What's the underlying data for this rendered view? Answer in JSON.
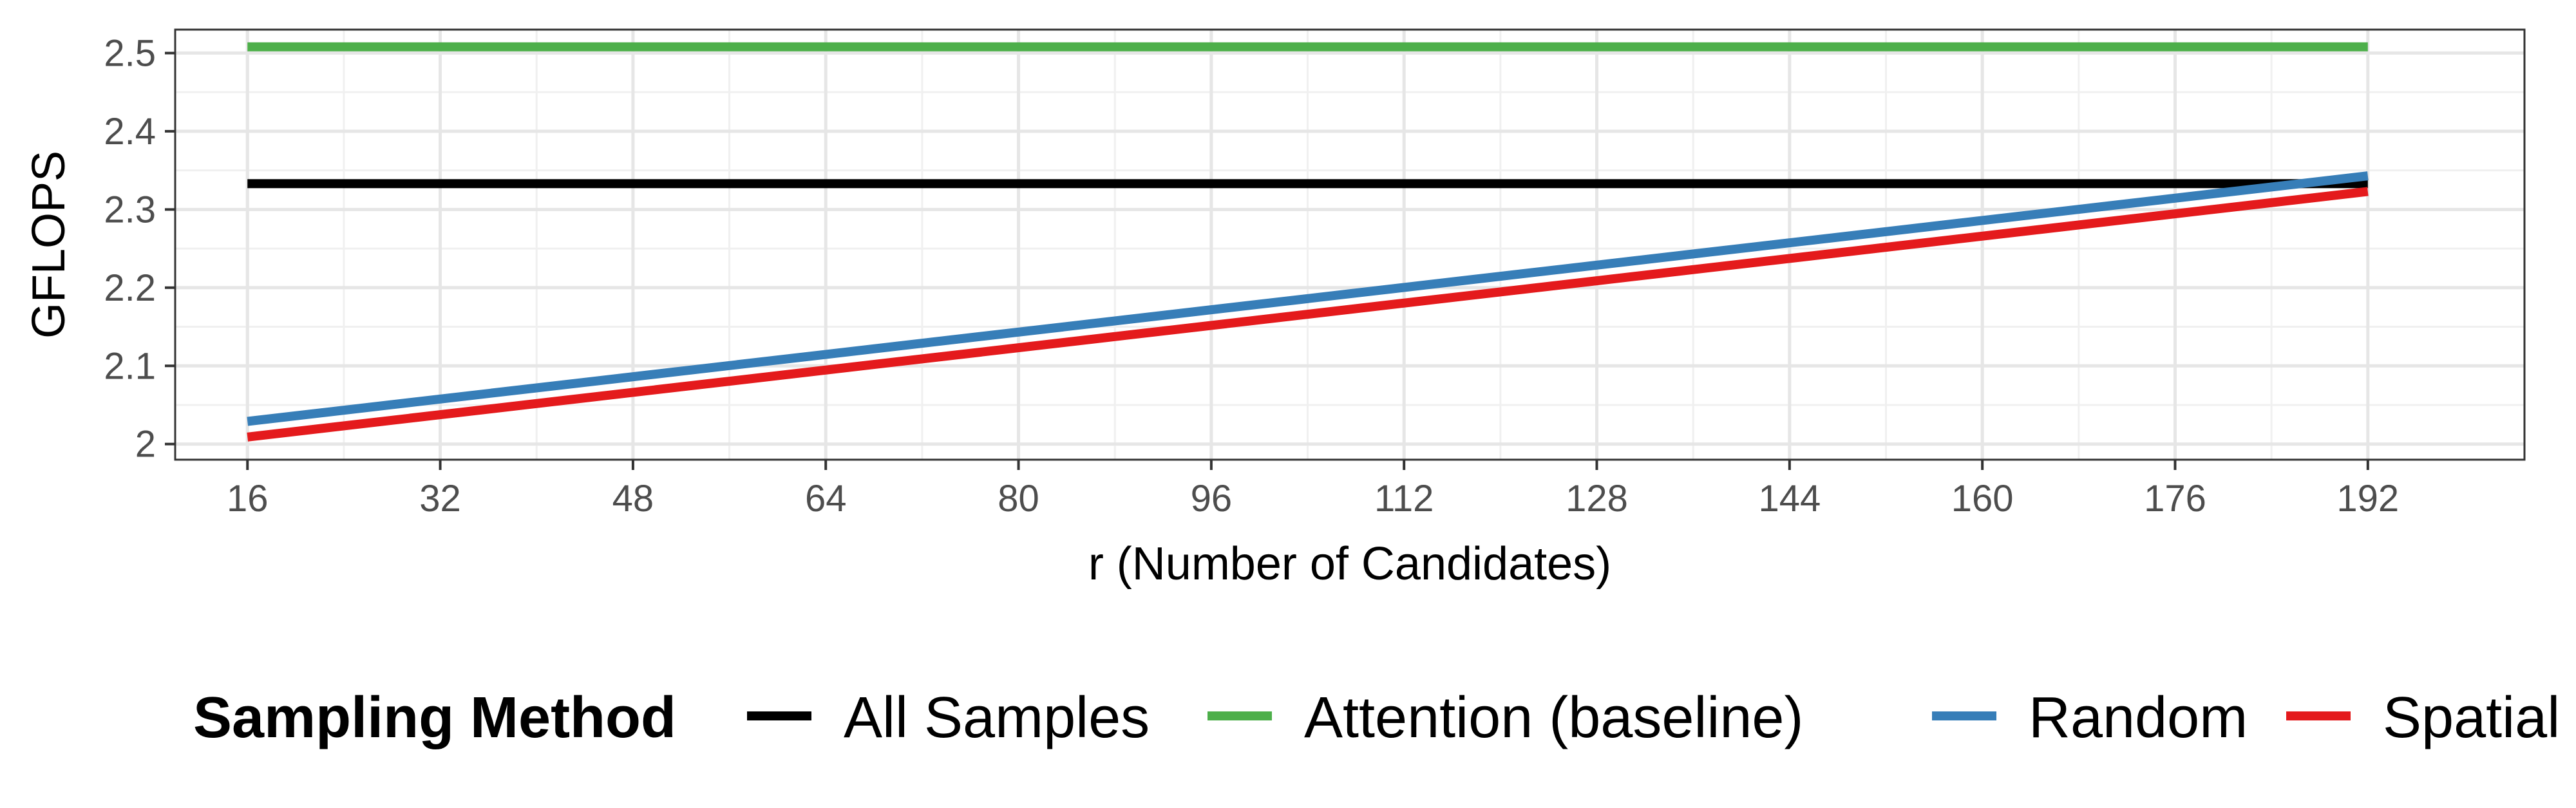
{
  "chart_data": {
    "type": "line",
    "xlabel": "r (Number of Candidates)",
    "ylabel": "GFLOPS",
    "xlim": [
      10,
      205
    ],
    "ylim": [
      1.98,
      2.53
    ],
    "x_ticks": [
      16,
      32,
      48,
      64,
      80,
      96,
      112,
      128,
      144,
      160,
      176,
      192
    ],
    "y_ticks": [
      2,
      2.1,
      2.2,
      2.3,
      2.4,
      2.5
    ],
    "y_tick_labels": [
      "2",
      "2.1",
      "2.2",
      "2.3",
      "2.4",
      "2.5"
    ],
    "grid": true,
    "legend": {
      "title": "Sampling Method",
      "position": "bottom",
      "entries": [
        "All Samples",
        "Attention (baseline)",
        "Random",
        "Spatial"
      ]
    },
    "series": [
      {
        "name": "All Samples",
        "color": "#000000",
        "x": [
          16,
          192
        ],
        "y": [
          2.333,
          2.333
        ]
      },
      {
        "name": "Attention (baseline)",
        "color": "#4daf4a",
        "x": [
          16,
          192
        ],
        "y": [
          2.508,
          2.508
        ]
      },
      {
        "name": "Random",
        "color": "#377eb8",
        "x": [
          16,
          192
        ],
        "y": [
          2.029,
          2.343
        ]
      },
      {
        "name": "Spatial",
        "color": "#e41a1c",
        "x": [
          16,
          192
        ],
        "y": [
          2.009,
          2.323
        ]
      }
    ]
  }
}
